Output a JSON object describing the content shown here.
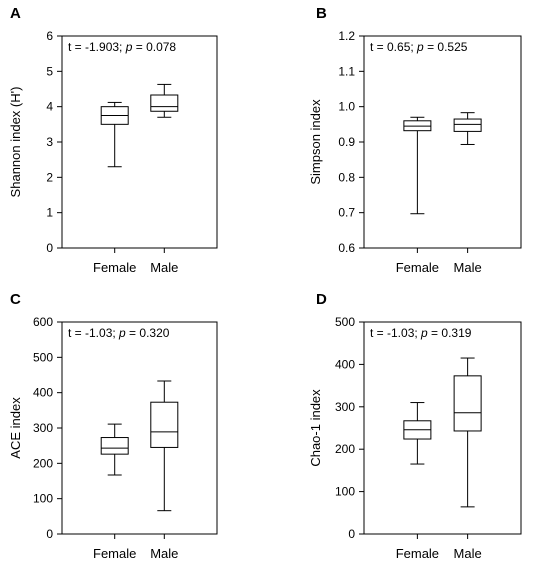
{
  "chart_data": [
    {
      "type": "box",
      "panel_letter": "A",
      "ylabel": "Shannon index (H')",
      "xlabel": "",
      "ylim": [
        0,
        6
      ],
      "yticks": [
        "0",
        "1",
        "2",
        "3",
        "4",
        "5",
        "6"
      ],
      "annotation": {
        "pre": "t = -1.903; ",
        "p_symbol": "p",
        "post": " = 0.078"
      },
      "categories": [
        "Female",
        "Male"
      ],
      "boxes": [
        {
          "category": "Female",
          "min": 2.3,
          "q1": 3.5,
          "median": 3.75,
          "q3": 4.0,
          "max": 4.12
        },
        {
          "category": "Male",
          "min": 3.7,
          "q1": 3.87,
          "median": 4.0,
          "q3": 4.33,
          "max": 4.63
        }
      ]
    },
    {
      "type": "box",
      "panel_letter": "B",
      "ylabel": "Simpson index",
      "xlabel": "",
      "ylim": [
        0.6,
        1.2
      ],
      "yticks": [
        "0.6",
        "0.7",
        "0.8",
        "0.9",
        "1.0",
        "1.1",
        "1.2"
      ],
      "annotation": {
        "pre": "t = 0.65; ",
        "p_symbol": "p",
        "post": " = 0.525"
      },
      "categories": [
        "Female",
        "Male"
      ],
      "boxes": [
        {
          "category": "Female",
          "min": 0.697,
          "q1": 0.932,
          "median": 0.945,
          "q3": 0.96,
          "max": 0.97
        },
        {
          "category": "Male",
          "min": 0.893,
          "q1": 0.93,
          "median": 0.95,
          "q3": 0.965,
          "max": 0.983
        }
      ]
    },
    {
      "type": "box",
      "panel_letter": "C",
      "ylabel": "ACE index",
      "xlabel": "",
      "ylim": [
        0,
        600
      ],
      "yticks": [
        "0",
        "100",
        "200",
        "300",
        "400",
        "500",
        "600"
      ],
      "annotation": {
        "pre": "t = -1.03; ",
        "p_symbol": "p",
        "post": " = 0.320"
      },
      "categories": [
        "Female",
        "Male"
      ],
      "boxes": [
        {
          "category": "Female",
          "min": 167,
          "q1": 226,
          "median": 243,
          "q3": 273,
          "max": 311
        },
        {
          "category": "Male",
          "min": 66,
          "q1": 245,
          "median": 289,
          "q3": 373,
          "max": 433
        }
      ]
    },
    {
      "type": "box",
      "panel_letter": "D",
      "ylabel": "Chao-1 index",
      "xlabel": "",
      "ylim": [
        0,
        500
      ],
      "yticks": [
        "0",
        "100",
        "200",
        "300",
        "400",
        "500"
      ],
      "annotation": {
        "pre": "t = -1.03; ",
        "p_symbol": "p",
        "post": " = 0.319"
      },
      "categories": [
        "Female",
        "Male"
      ],
      "boxes": [
        {
          "category": "Female",
          "min": 165,
          "q1": 224,
          "median": 246,
          "q3": 267,
          "max": 310
        },
        {
          "category": "Male",
          "min": 64,
          "q1": 243,
          "median": 286,
          "q3": 373,
          "max": 415
        }
      ]
    }
  ]
}
